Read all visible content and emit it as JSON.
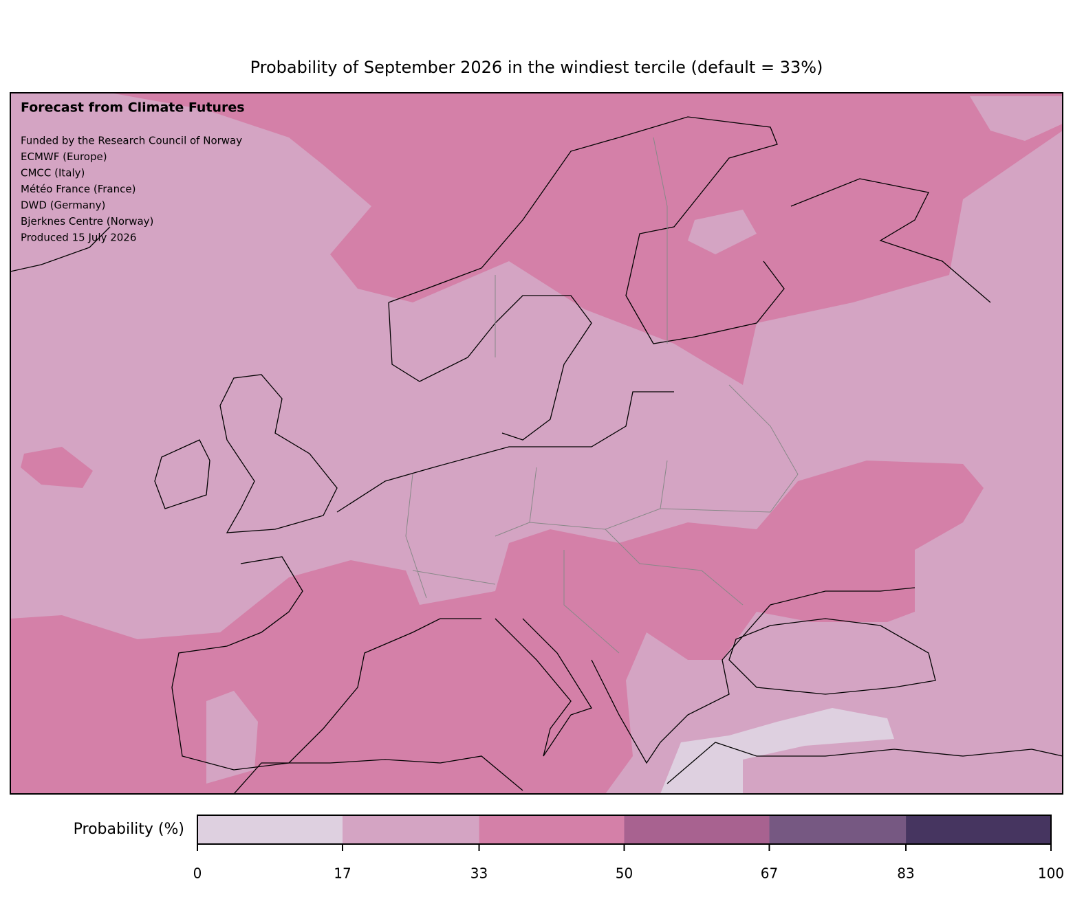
{
  "title": "Probability of September 2026 in the windiest tercile (default = 33%)",
  "credits": {
    "heading": "Forecast from Climate Futures",
    "lines": [
      "Funded by the Research Council of Norway",
      "ECMWF (Europe)",
      "CMCC (Italy)",
      "Météo France (France)",
      "DWD (Germany)",
      "Bjerknes Centre (Norway)",
      "Produced 15 July 2026"
    ]
  },
  "colorbar": {
    "label": "Probability (%)",
    "lim": [
      0,
      100
    ],
    "ticks": [
      0,
      17,
      33,
      50,
      67,
      83,
      100
    ],
    "colors": [
      "#ded0e0",
      "#d4a4c3",
      "#d480a8",
      "#a86290",
      "#765882",
      "#463560"
    ]
  }
}
